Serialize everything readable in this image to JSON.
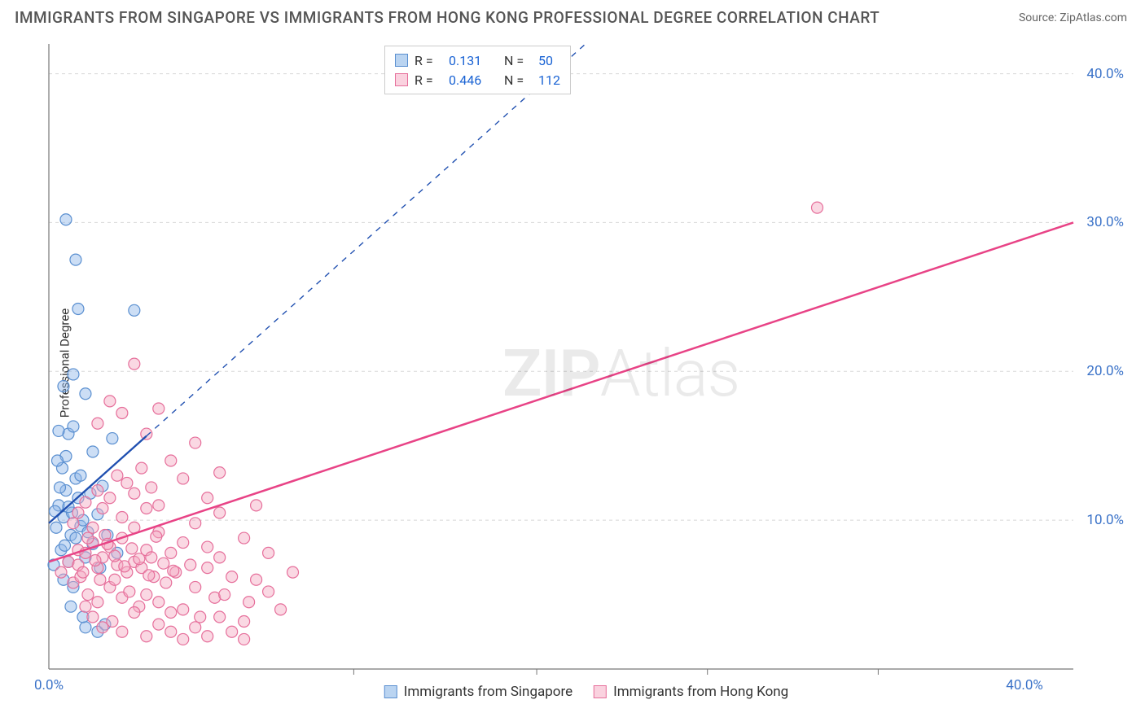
{
  "title": "IMMIGRANTS FROM SINGAPORE VS IMMIGRANTS FROM HONG KONG PROFESSIONAL DEGREE CORRELATION CHART",
  "source_prefix": "Source: ",
  "source_name": "ZipAtlas.com",
  "ylabel": "Professional Degree",
  "watermark_left": "ZIP",
  "watermark_right": "Atlas",
  "chart": {
    "type": "scatter",
    "xlim": [
      0,
      42
    ],
    "ylim": [
      0,
      42
    ],
    "plot_background": "#ffffff",
    "grid_color": "#d8d8d8",
    "grid_dash": "4 4",
    "axis_color": "#777777",
    "tick_color": "#777777",
    "ytick_positions": [
      10,
      20,
      30,
      40
    ],
    "ytick_labels": [
      "10.0%",
      "20.0%",
      "30.0%",
      "40.0%"
    ],
    "xtick_major_positions": [
      0,
      40
    ],
    "xtick_major_labels": [
      "0.0%",
      "40.0%"
    ],
    "xtick_minor_positions": [
      12.5,
      20,
      27,
      34
    ],
    "marker_radius": 7,
    "marker_stroke_width": 1.2,
    "marker_fill_opacity": 0.45,
    "tick_label_color": "#3a72c8",
    "tick_label_fontsize": 17
  },
  "series": [
    {
      "name": "Immigrants from Singapore",
      "label": "Immigrants from Singapore",
      "color_fill": "#8db5e8",
      "color_stroke": "#5a8fd0",
      "swatch_border": "#5a8fd0",
      "swatch_fill": "#bad4f1",
      "r_value": "0.131",
      "n_value": "50",
      "trend": {
        "x1": 0,
        "y1": 9.8,
        "x2": 22,
        "y2": 42,
        "stroke": "#1f4fb0",
        "width": 2.3,
        "dash_after_x": 4.0
      },
      "points": [
        [
          0.2,
          7.0
        ],
        [
          0.3,
          9.5
        ],
        [
          0.4,
          11.0
        ],
        [
          0.5,
          8.0
        ],
        [
          0.6,
          6.0
        ],
        [
          0.6,
          10.2
        ],
        [
          0.7,
          12.0
        ],
        [
          0.7,
          14.3
        ],
        [
          0.8,
          7.2
        ],
        [
          0.8,
          15.8
        ],
        [
          0.9,
          9.0
        ],
        [
          0.95,
          10.5
        ],
        [
          1.0,
          16.3
        ],
        [
          1.0,
          5.5
        ],
        [
          1.1,
          12.8
        ],
        [
          1.1,
          8.8
        ],
        [
          1.2,
          11.5
        ],
        [
          1.3,
          9.6
        ],
        [
          1.3,
          13.0
        ],
        [
          1.4,
          10.0
        ],
        [
          1.5,
          7.5
        ],
        [
          1.5,
          18.5
        ],
        [
          1.6,
          9.2
        ],
        [
          1.7,
          11.8
        ],
        [
          1.8,
          8.4
        ],
        [
          1.8,
          14.6
        ],
        [
          2.0,
          10.4
        ],
        [
          2.1,
          6.8
        ],
        [
          2.2,
          12.3
        ],
        [
          2.4,
          9.0
        ],
        [
          2.6,
          15.5
        ],
        [
          2.8,
          7.8
        ],
        [
          1.0,
          19.8
        ],
        [
          0.4,
          16.0
        ],
        [
          0.7,
          30.2
        ],
        [
          1.1,
          27.5
        ],
        [
          0.6,
          19.0
        ],
        [
          1.2,
          24.2
        ],
        [
          3.5,
          24.1
        ],
        [
          1.5,
          2.8
        ],
        [
          2.0,
          2.5
        ],
        [
          2.3,
          3.0
        ],
        [
          0.9,
          4.2
        ],
        [
          1.4,
          3.5
        ],
        [
          0.55,
          13.5
        ],
        [
          0.8,
          10.9
        ],
        [
          0.65,
          8.3
        ],
        [
          0.35,
          14.0
        ],
        [
          0.45,
          12.2
        ],
        [
          0.25,
          10.6
        ]
      ]
    },
    {
      "name": "Immigrants from Hong Kong",
      "label": "Immigrants from Hong Kong",
      "color_fill": "#f4a9c1",
      "color_stroke": "#e66f9b",
      "swatch_border": "#e66f9b",
      "swatch_fill": "#fad2df",
      "r_value": "0.446",
      "n_value": "112",
      "trend": {
        "x1": 0,
        "y1": 7.2,
        "x2": 42,
        "y2": 30,
        "stroke": "#e84386",
        "width": 2.5,
        "dash_after_x": null
      },
      "points": [
        [
          0.5,
          6.5
        ],
        [
          0.8,
          7.2
        ],
        [
          1.0,
          5.8
        ],
        [
          1.2,
          8.0
        ],
        [
          1.3,
          6.2
        ],
        [
          1.5,
          7.8
        ],
        [
          1.6,
          5.0
        ],
        [
          1.8,
          8.5
        ],
        [
          2.0,
          6.8
        ],
        [
          2.0,
          4.5
        ],
        [
          2.2,
          7.5
        ],
        [
          2.3,
          9.0
        ],
        [
          2.5,
          5.5
        ],
        [
          2.5,
          8.2
        ],
        [
          2.7,
          6.0
        ],
        [
          2.8,
          7.0
        ],
        [
          3.0,
          8.8
        ],
        [
          3.0,
          4.8
        ],
        [
          3.2,
          6.5
        ],
        [
          3.3,
          5.2
        ],
        [
          3.5,
          7.2
        ],
        [
          3.5,
          9.5
        ],
        [
          3.7,
          4.2
        ],
        [
          3.8,
          6.8
        ],
        [
          4.0,
          8.0
        ],
        [
          4.0,
          5.0
        ],
        [
          4.2,
          7.5
        ],
        [
          4.3,
          6.2
        ],
        [
          4.5,
          4.5
        ],
        [
          4.5,
          9.2
        ],
        [
          4.8,
          5.8
        ],
        [
          5.0,
          7.8
        ],
        [
          5.0,
          3.8
        ],
        [
          5.2,
          6.5
        ],
        [
          5.5,
          8.5
        ],
        [
          5.5,
          4.0
        ],
        [
          5.8,
          7.0
        ],
        [
          6.0,
          5.5
        ],
        [
          6.0,
          9.8
        ],
        [
          6.2,
          3.5
        ],
        [
          6.5,
          6.8
        ],
        [
          6.5,
          8.2
        ],
        [
          6.8,
          4.8
        ],
        [
          7.0,
          7.5
        ],
        [
          7.0,
          10.5
        ],
        [
          7.2,
          5.0
        ],
        [
          7.5,
          6.2
        ],
        [
          8.0,
          3.2
        ],
        [
          8.0,
          8.8
        ],
        [
          8.2,
          4.5
        ],
        [
          8.5,
          6.0
        ],
        [
          8.5,
          11.0
        ],
        [
          9.0,
          5.2
        ],
        [
          9.0,
          7.8
        ],
        [
          9.5,
          4.0
        ],
        [
          10.0,
          6.5
        ],
        [
          1.0,
          9.8
        ],
        [
          1.2,
          10.5
        ],
        [
          1.5,
          11.2
        ],
        [
          1.8,
          9.5
        ],
        [
          2.0,
          12.0
        ],
        [
          2.2,
          10.8
        ],
        [
          2.5,
          11.5
        ],
        [
          2.8,
          13.0
        ],
        [
          3.0,
          10.2
        ],
        [
          3.2,
          12.5
        ],
        [
          3.5,
          11.8
        ],
        [
          3.8,
          13.5
        ],
        [
          4.0,
          10.8
        ],
        [
          4.2,
          12.2
        ],
        [
          4.5,
          11.0
        ],
        [
          5.0,
          14.0
        ],
        [
          5.5,
          12.8
        ],
        [
          6.0,
          15.2
        ],
        [
          6.5,
          11.5
        ],
        [
          7.0,
          13.2
        ],
        [
          2.0,
          16.5
        ],
        [
          2.5,
          18.0
        ],
        [
          3.0,
          17.2
        ],
        [
          3.5,
          20.5
        ],
        [
          4.0,
          15.8
        ],
        [
          4.5,
          17.5
        ],
        [
          1.5,
          4.2
        ],
        [
          1.8,
          3.5
        ],
        [
          2.2,
          2.8
        ],
        [
          2.6,
          3.2
        ],
        [
          3.0,
          2.5
        ],
        [
          3.5,
          3.8
        ],
        [
          4.0,
          2.2
        ],
        [
          4.5,
          3.0
        ],
        [
          5.0,
          2.5
        ],
        [
          5.5,
          2.0
        ],
        [
          6.0,
          2.8
        ],
        [
          6.5,
          2.2
        ],
        [
          7.0,
          3.5
        ],
        [
          7.5,
          2.5
        ],
        [
          8.0,
          2.0
        ],
        [
          1.2,
          7.0
        ],
        [
          1.4,
          6.5
        ],
        [
          1.6,
          8.8
        ],
        [
          1.9,
          7.3
        ],
        [
          2.1,
          6.0
        ],
        [
          2.4,
          8.4
        ],
        [
          2.7,
          7.6
        ],
        [
          3.1,
          6.9
        ],
        [
          3.4,
          8.1
        ],
        [
          3.7,
          7.4
        ],
        [
          4.1,
          6.3
        ],
        [
          4.4,
          8.9
        ],
        [
          4.7,
          7.1
        ],
        [
          5.1,
          6.6
        ],
        [
          31.5,
          31.0
        ]
      ]
    }
  ],
  "legend_top": {
    "r_label": "R =",
    "n_label": "N ="
  },
  "legend_bottom_items": [
    "Immigrants from Singapore",
    "Immigrants from Hong Kong"
  ]
}
